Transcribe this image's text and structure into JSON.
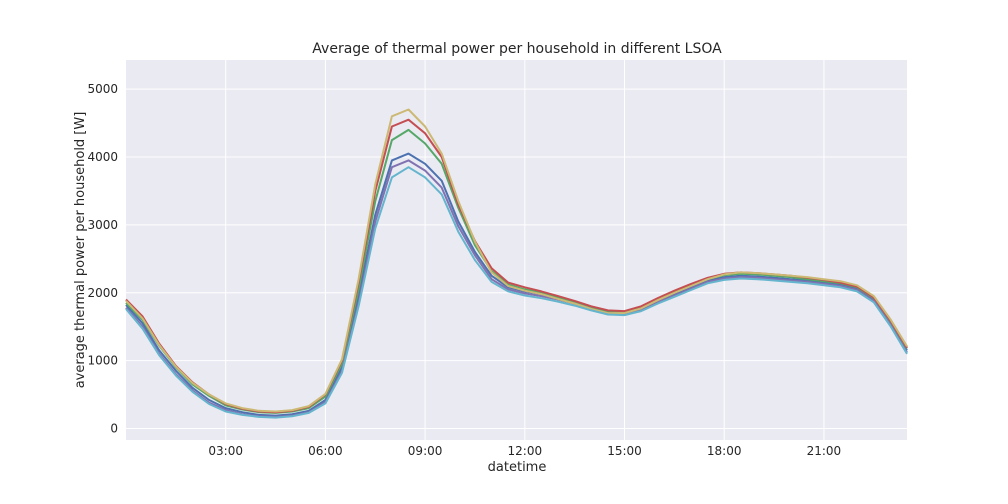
{
  "chart_data": {
    "type": "line",
    "title": "Average of thermal power per household in different LSOA",
    "xlabel": "datetime",
    "ylabel": "average thermal power per household [W]",
    "x_range": [
      "00:00",
      "23:30"
    ],
    "ylim": [
      -170,
      5430
    ],
    "grid": true,
    "legend": "none",
    "x_ticks": [
      "03:00",
      "06:00",
      "09:00",
      "12:00",
      "15:00",
      "18:00",
      "21:00"
    ],
    "y_ticks": [
      0,
      1000,
      2000,
      3000,
      4000,
      5000
    ],
    "x": [
      "00:00",
      "00:30",
      "01:00",
      "01:30",
      "02:00",
      "02:30",
      "03:00",
      "03:30",
      "04:00",
      "04:30",
      "05:00",
      "05:30",
      "06:00",
      "06:30",
      "07:00",
      "07:30",
      "08:00",
      "08:30",
      "09:00",
      "09:30",
      "10:00",
      "10:30",
      "11:00",
      "11:30",
      "12:00",
      "12:30",
      "13:00",
      "13:30",
      "14:00",
      "14:30",
      "15:00",
      "15:30",
      "16:00",
      "16:30",
      "17:00",
      "17:30",
      "18:00",
      "18:30",
      "19:00",
      "19:30",
      "20:00",
      "20:30",
      "21:00",
      "21:30",
      "22:00",
      "22:30",
      "23:00",
      "23:30"
    ],
    "series": [
      {
        "color": "#4c72b0",
        "values": [
          1820,
          1550,
          1150,
          850,
          600,
          420,
          300,
          240,
          200,
          190,
          210,
          260,
          420,
          900,
          1950,
          3150,
          3950,
          4050,
          3900,
          3650,
          3050,
          2600,
          2250,
          2080,
          2020,
          1980,
          1920,
          1860,
          1780,
          1710,
          1700,
          1760,
          1880,
          1980,
          2080,
          2180,
          2230,
          2250,
          2240,
          2220,
          2200,
          2180,
          2150,
          2120,
          2060,
          1900,
          1550,
          1150
        ]
      },
      {
        "color": "#55a868",
        "values": [
          1850,
          1600,
          1220,
          900,
          650,
          480,
          340,
          280,
          240,
          230,
          250,
          300,
          470,
          960,
          2050,
          3350,
          4250,
          4400,
          4200,
          3900,
          3250,
          2700,
          2320,
          2120,
          2050,
          2000,
          1930,
          1860,
          1790,
          1730,
          1720,
          1790,
          1900,
          2010,
          2110,
          2200,
          2260,
          2280,
          2270,
          2250,
          2230,
          2200,
          2170,
          2140,
          2080,
          1920,
          1580,
          1180
        ]
      },
      {
        "color": "#c44e52",
        "values": [
          1900,
          1650,
          1250,
          920,
          680,
          500,
          360,
          290,
          250,
          240,
          260,
          320,
          500,
          1000,
          2150,
          3500,
          4450,
          4550,
          4350,
          4000,
          3300,
          2760,
          2360,
          2150,
          2080,
          2020,
          1950,
          1880,
          1800,
          1740,
          1730,
          1800,
          1920,
          2030,
          2130,
          2220,
          2280,
          2300,
          2290,
          2270,
          2250,
          2220,
          2190,
          2150,
          2090,
          1930,
          1590,
          1190
        ]
      },
      {
        "color": "#8172b2",
        "values": [
          1780,
          1500,
          1100,
          800,
          560,
          380,
          270,
          210,
          180,
          170,
          190,
          240,
          390,
          850,
          1850,
          3050,
          3850,
          3950,
          3800,
          3550,
          2980,
          2550,
          2200,
          2050,
          1990,
          1950,
          1900,
          1840,
          1760,
          1690,
          1680,
          1740,
          1860,
          1960,
          2060,
          2160,
          2210,
          2230,
          2220,
          2200,
          2180,
          2160,
          2130,
          2100,
          2040,
          1880,
          1530,
          1120
        ]
      },
      {
        "color": "#ccb974",
        "values": [
          1880,
          1620,
          1230,
          910,
          670,
          500,
          370,
          300,
          260,
          250,
          270,
          330,
          510,
          1020,
          2200,
          3600,
          4600,
          4700,
          4450,
          4050,
          3350,
          2750,
          2300,
          2100,
          2030,
          1980,
          1910,
          1840,
          1760,
          1700,
          1700,
          1770,
          1890,
          2000,
          2100,
          2200,
          2270,
          2300,
          2290,
          2270,
          2250,
          2230,
          2200,
          2170,
          2110,
          1950,
          1610,
          1210
        ]
      },
      {
        "color": "#64b5cd",
        "values": [
          1760,
          1470,
          1080,
          780,
          540,
          360,
          250,
          200,
          170,
          160,
          180,
          230,
          370,
          820,
          1800,
          2950,
          3700,
          3850,
          3700,
          3450,
          2900,
          2480,
          2160,
          2020,
          1960,
          1920,
          1870,
          1810,
          1740,
          1680,
          1670,
          1730,
          1840,
          1940,
          2040,
          2140,
          2190,
          2210,
          2200,
          2180,
          2160,
          2140,
          2110,
          2080,
          2020,
          1860,
          1510,
          1100
        ]
      }
    ]
  }
}
